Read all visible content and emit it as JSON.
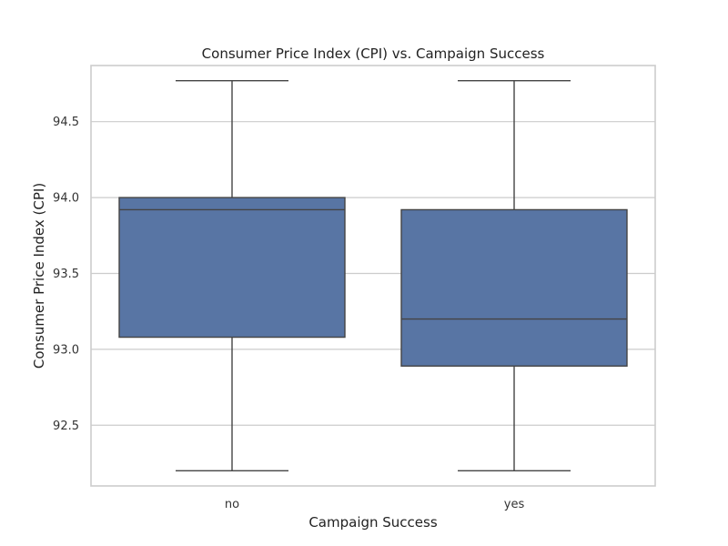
{
  "chart_data": {
    "type": "box",
    "title": "Consumer Price Index (CPI) vs. Campaign Success",
    "xlabel": "Campaign Success",
    "ylabel": "Consumer Price Index (CPI)",
    "ylim": [
      92.1,
      94.87
    ],
    "yticks": [
      92.5,
      93.0,
      93.5,
      94.0,
      94.5
    ],
    "ytick_labels": [
      "92.5",
      "93.0",
      "93.5",
      "94.0",
      "94.5"
    ],
    "grid": true,
    "box_color": "#5875a4",
    "categories": [
      "no",
      "yes"
    ],
    "boxes": [
      {
        "category": "no",
        "min": 92.2,
        "q1": 93.08,
        "median": 93.92,
        "q3": 94.0,
        "max": 94.77
      },
      {
        "category": "yes",
        "min": 92.2,
        "q1": 92.89,
        "median": 93.2,
        "q3": 93.92,
        "max": 94.77
      }
    ]
  }
}
